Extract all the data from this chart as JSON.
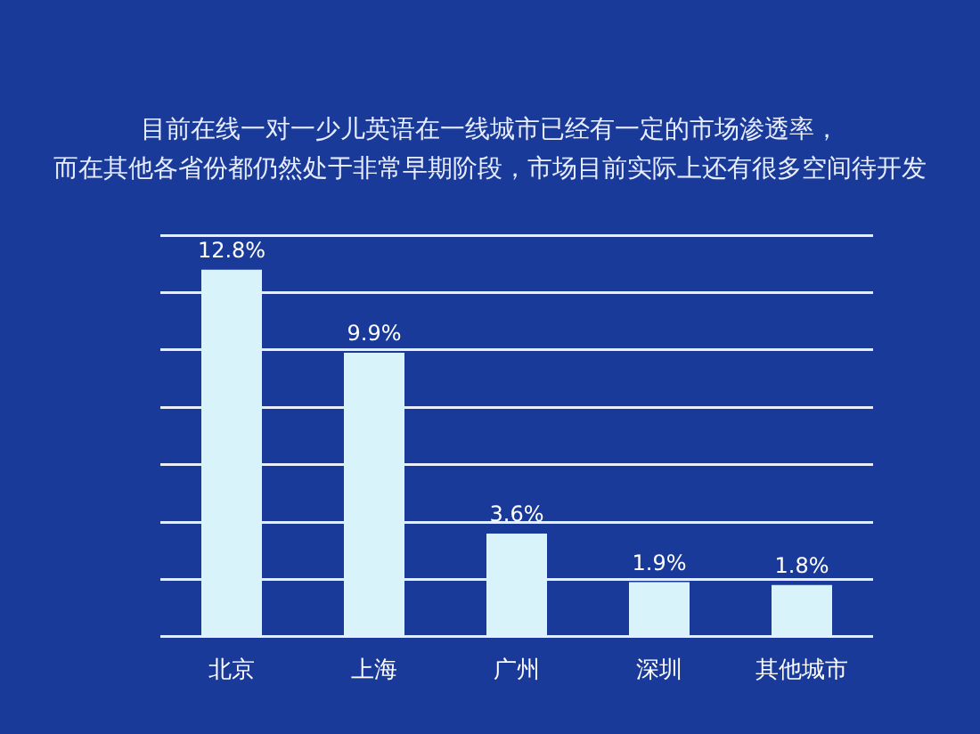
{
  "chart_data": {
    "type": "bar",
    "title": [
      "目前在线一对一少儿英语在一线城市已经有一定的市场渗透率，",
      "而在其他各省份都仍然处于非常早期阶段，市场目前实际上还有很多空间待开发"
    ],
    "categories": [
      "北京",
      "上海",
      "广州",
      "深圳",
      "其他城市"
    ],
    "values": [
      12.8,
      9.9,
      3.6,
      1.9,
      1.8
    ],
    "value_labels": [
      "12.8%",
      "9.9%",
      "3.6%",
      "1.9%",
      "1.8%"
    ],
    "color": "#d9f3fb",
    "ylim": [
      0,
      14
    ],
    "yticks": [
      {
        "value": 0,
        "label": null
      },
      {
        "value": 2,
        "label": null
      },
      {
        "value": 4,
        "label": null
      },
      {
        "value": 6,
        "label": null
      },
      {
        "value": 8,
        "label": null
      },
      {
        "value": 10,
        "label": null
      },
      {
        "value": 12,
        "label": null
      },
      {
        "value": 14,
        "label": null
      }
    ],
    "grid": "y",
    "tick_labels": "x",
    "legend": false
  }
}
